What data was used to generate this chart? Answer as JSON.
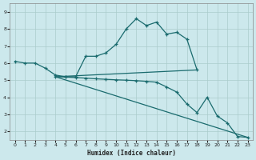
{
  "xlabel": "Humidex (Indice chaleur)",
  "background_color": "#cce8ec",
  "grid_color": "#aacccc",
  "line_color": "#1a6b6e",
  "xlim": [
    -0.5,
    23.5
  ],
  "ylim": [
    1.5,
    9.5
  ],
  "xticks": [
    0,
    1,
    2,
    3,
    4,
    5,
    6,
    7,
    8,
    9,
    10,
    11,
    12,
    13,
    14,
    15,
    16,
    17,
    18,
    19,
    20,
    21,
    22,
    23
  ],
  "yticks": [
    2,
    3,
    4,
    5,
    6,
    7,
    8,
    9
  ],
  "curve1_x": [
    0,
    1,
    2,
    3,
    4,
    5,
    6,
    7,
    8,
    9,
    10,
    11,
    12,
    13,
    14,
    15,
    16,
    17,
    18
  ],
  "curve1_y": [
    6.1,
    6.0,
    6.0,
    5.7,
    5.3,
    5.2,
    5.2,
    6.4,
    6.4,
    6.6,
    7.1,
    8.0,
    8.6,
    8.2,
    8.4,
    7.7,
    7.8,
    7.4,
    5.6
  ],
  "curve2_x": [
    4,
    5,
    6,
    7,
    8,
    9,
    10,
    11,
    12,
    13,
    14,
    15,
    16,
    17,
    18,
    19,
    20,
    21,
    22,
    23
  ],
  "curve2_y": [
    5.2,
    5.18,
    5.15,
    5.12,
    5.08,
    5.05,
    5.02,
    5.0,
    4.97,
    4.93,
    4.88,
    4.6,
    4.3,
    3.6,
    3.1,
    4.0,
    2.9,
    2.5,
    1.7,
    1.65
  ],
  "line3_x": [
    4,
    18
  ],
  "line3_y": [
    5.2,
    5.6
  ],
  "line4_x": [
    4,
    23
  ],
  "line4_y": [
    5.2,
    1.65
  ]
}
